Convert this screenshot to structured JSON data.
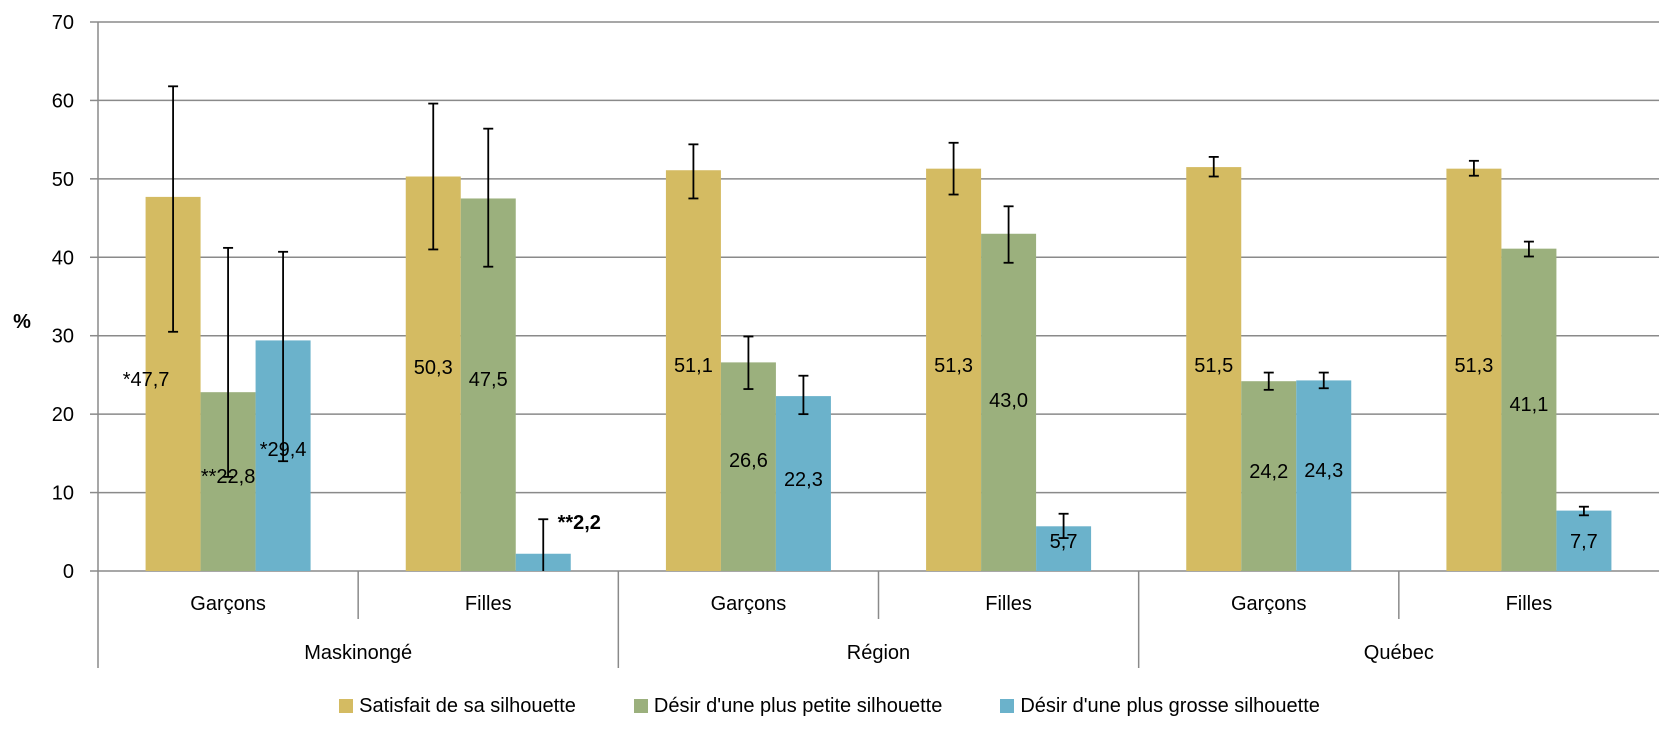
{
  "chart_data": {
    "type": "bar",
    "ylabel": "%",
    "ylim": [
      0,
      70
    ],
    "yticks": [
      "0",
      "10",
      "20",
      "30",
      "40",
      "50",
      "60",
      "70"
    ],
    "grid": true,
    "legend_position": "bottom",
    "groups": [
      {
        "label": "Maskinongé",
        "categories": [
          "Garçons",
          "Filles"
        ]
      },
      {
        "label": "Région",
        "categories": [
          "Garçons",
          "Filles"
        ]
      },
      {
        "label": "Québec",
        "categories": [
          "Garçons",
          "Filles"
        ]
      }
    ],
    "series": [
      {
        "name": "Satisfait de sa silhouette",
        "color": "#D4BB62",
        "values": [
          47.7,
          50.3,
          51.1,
          51.3,
          51.5,
          51.3
        ],
        "labels": [
          "*47,7",
          "50,3",
          "51,1",
          "51,3",
          "51,5",
          "51,3"
        ],
        "error_low": [
          30.5,
          41.0,
          47.5,
          48.0,
          50.3,
          50.4
        ],
        "error_high": [
          61.8,
          59.6,
          54.4,
          54.6,
          52.8,
          52.3
        ]
      },
      {
        "name": "Désir d'une plus petite silhouette",
        "color": "#9BB07D",
        "values": [
          22.8,
          47.5,
          26.6,
          43.0,
          24.2,
          41.1
        ],
        "labels": [
          "**22,8",
          "47,5",
          "26,6",
          "43,0",
          "24,2",
          "41,1"
        ],
        "error_low": [
          12.0,
          38.8,
          23.2,
          39.3,
          23.1,
          40.1
        ],
        "error_high": [
          41.2,
          56.4,
          29.9,
          46.5,
          25.3,
          42.0
        ]
      },
      {
        "name": "Désir d'une plus grosse silhouette",
        "color": "#6BB2CB",
        "values": [
          29.4,
          2.2,
          22.3,
          5.7,
          24.3,
          7.7
        ],
        "labels": [
          "*29,4",
          "**2,2",
          "22,3",
          "5,7",
          "24,3",
          "7,7"
        ],
        "label_bold": [
          false,
          true,
          false,
          false,
          false,
          false
        ],
        "error_low": [
          14.0,
          0.0,
          20.0,
          4.2,
          23.3,
          7.1
        ],
        "error_high": [
          40.7,
          6.6,
          24.9,
          7.3,
          25.3,
          8.2
        ]
      }
    ]
  }
}
